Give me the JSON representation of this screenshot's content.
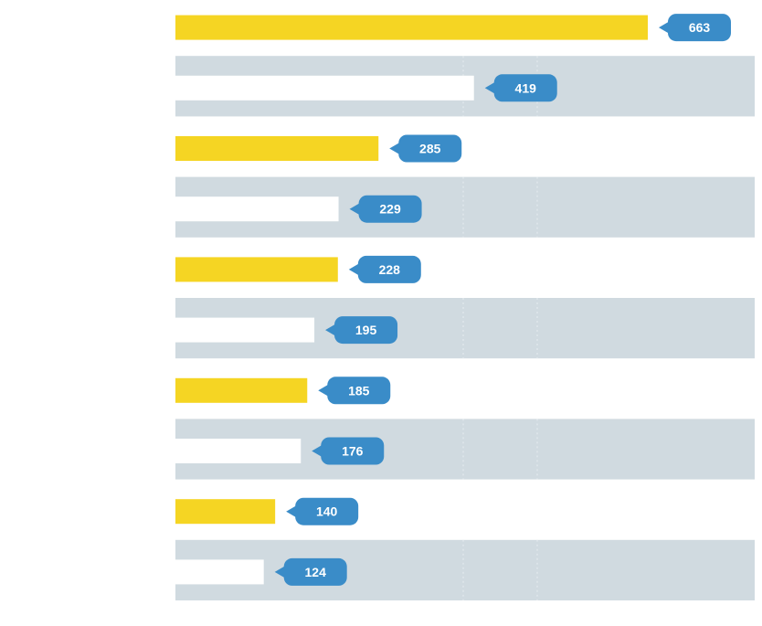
{
  "chart_data": {
    "type": "bar",
    "orientation": "horizontal",
    "categories": [
      "",
      "",
      "",
      "",
      "",
      "",
      "",
      "",
      "",
      ""
    ],
    "values": [
      663,
      419,
      285,
      229,
      228,
      195,
      185,
      176,
      140,
      124
    ],
    "value_labels": [
      "663",
      "419",
      "285",
      "229",
      "228",
      "195",
      "185",
      "176",
      "140",
      "124"
    ],
    "title": "",
    "xlabel": "",
    "ylabel": "",
    "xlim": [
      0,
      663
    ],
    "grid": false,
    "legend": "none",
    "colors": {
      "bar_odd": "#f5d523",
      "bar_even": "#ffffff",
      "band": "#d0dae0",
      "callout": "#3a8cc8",
      "callout_text": "#ffffff",
      "gridline": "#e6ecef"
    }
  }
}
